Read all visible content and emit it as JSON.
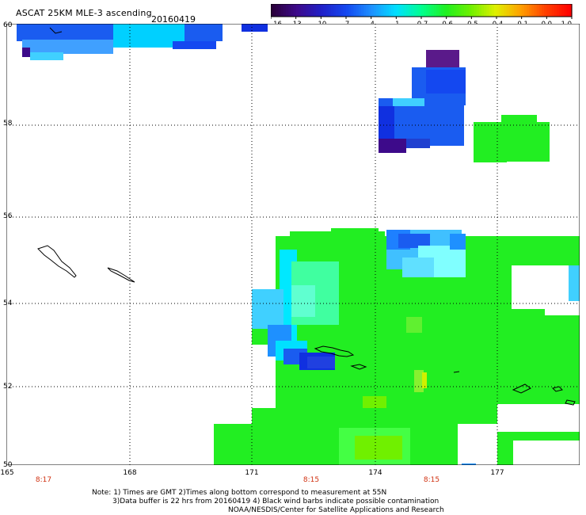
{
  "header": {
    "title": "ASCAT 25KM MLE-3 ascending",
    "date": "20160419"
  },
  "colorbar": {
    "ticks": [
      "-16",
      "-13",
      "-10",
      "-7",
      "-4",
      "-1",
      "-0.7",
      "-0.6",
      "-0.5",
      "-0.4",
      "-0.1",
      "0.0",
      "1.0"
    ],
    "colors": [
      "#2a003a",
      "#3d0a8a",
      "#2020c8",
      "#1448f0",
      "#1e90ff",
      "#00e0ff",
      "#00ff90",
      "#20f020",
      "#70f000",
      "#e0f000",
      "#ffa000",
      "#ff4000",
      "#ff0000"
    ]
  },
  "axes": {
    "lat_ticks": [
      "60",
      "58",
      "56",
      "54",
      "52",
      "50"
    ],
    "lon_ticks": [
      "165",
      "168",
      "171",
      "174",
      "177"
    ],
    "time_ticks": [
      "8:17",
      "8:15",
      "8:15"
    ]
  },
  "palette": {
    "green": "#22ee22",
    "green_light": "#44ff44",
    "yellow_green": "#88f030",
    "cyan": "#00e8ff",
    "light_blue": "#40c0ff",
    "blue": "#1a5cf0",
    "deep_blue": "#1030e0",
    "purple": "#5a1a8a"
  },
  "notes": {
    "line1": "Note: 1) Times are GMT 2)Times along bottom correspond to measurement at 55N",
    "line2": "3)Data buffer is 22 hrs from 20160419 4) Black wind barbs indicate possible contamination",
    "line3": "NOAA/NESDIS/Center for Satellite Applications and Research"
  }
}
